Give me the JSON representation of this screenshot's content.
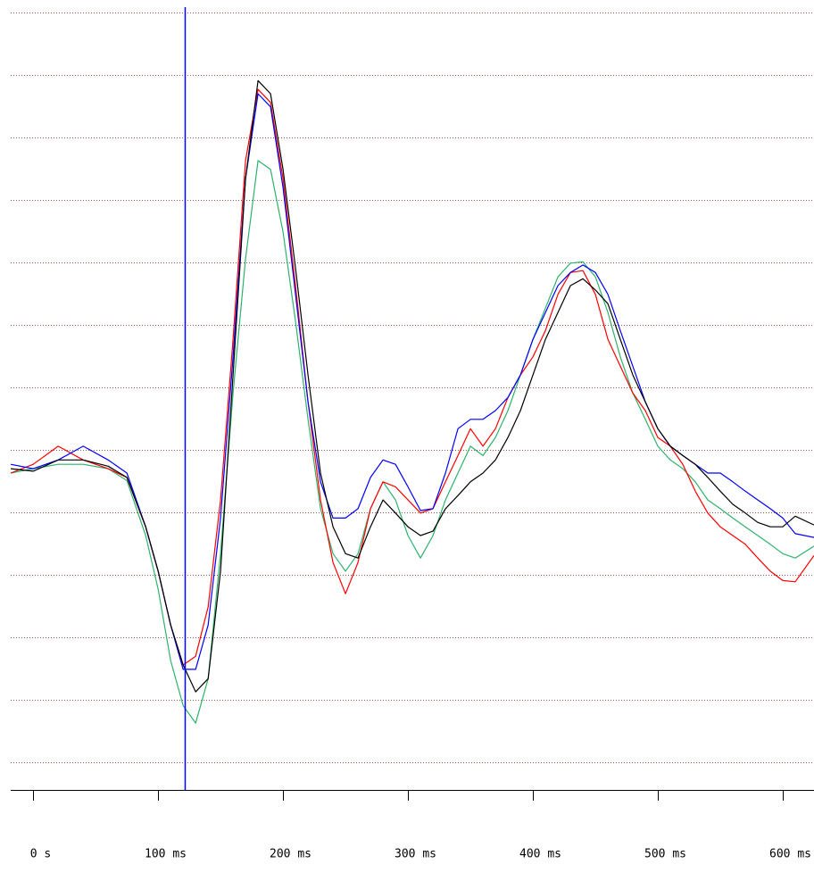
{
  "chart_data": {
    "type": "line",
    "x": [
      -18,
      0,
      20,
      40,
      60,
      75,
      90,
      100,
      110,
      120,
      130,
      140,
      150,
      160,
      170,
      180,
      190,
      200,
      210,
      220,
      230,
      240,
      250,
      260,
      270,
      280,
      290,
      300,
      310,
      320,
      330,
      340,
      350,
      360,
      370,
      380,
      390,
      400,
      410,
      420,
      430,
      440,
      450,
      460,
      470,
      480,
      490,
      500,
      510,
      520,
      530,
      540,
      550,
      560,
      570,
      580,
      590,
      600,
      610,
      625
    ],
    "series": [
      {
        "color": "#2db36b",
        "values": [
          -0.37,
          -0.3,
          -0.23,
          -0.23,
          -0.3,
          -0.49,
          -1.37,
          -2.23,
          -3.37,
          -4.09,
          -4.37,
          -3.66,
          -1.66,
          0.91,
          3.06,
          4.63,
          4.49,
          3.49,
          2.06,
          0.49,
          -0.94,
          -1.66,
          -1.94,
          -1.66,
          -0.94,
          -0.51,
          -0.8,
          -1.37,
          -1.73,
          -1.37,
          -0.8,
          -0.37,
          0.06,
          -0.09,
          0.2,
          0.63,
          1.2,
          1.77,
          2.27,
          2.77,
          2.99,
          3.01,
          2.77,
          2.2,
          1.49,
          0.91,
          0.49,
          0.06,
          -0.16,
          -0.3,
          -0.51,
          -0.8,
          -0.94,
          -1.09,
          -1.23,
          -1.37,
          -1.51,
          -1.66,
          -1.73,
          -1.54
        ]
      },
      {
        "color": "#ff0000",
        "values": [
          -0.37,
          -0.23,
          0.06,
          -0.16,
          -0.3,
          -0.44,
          -1.23,
          -1.94,
          -2.8,
          -3.44,
          -3.3,
          -2.51,
          -0.8,
          1.77,
          4.63,
          5.77,
          5.56,
          4.34,
          2.63,
          0.77,
          -0.8,
          -1.8,
          -2.3,
          -1.8,
          -0.94,
          -0.51,
          -0.59,
          -0.8,
          -1.01,
          -0.94,
          -0.51,
          -0.09,
          0.34,
          0.06,
          0.34,
          0.84,
          1.2,
          1.49,
          1.91,
          2.49,
          2.84,
          2.87,
          2.49,
          1.77,
          1.34,
          0.91,
          0.63,
          0.2,
          0.06,
          -0.23,
          -0.66,
          -1.01,
          -1.23,
          -1.37,
          -1.51,
          -1.73,
          -1.94,
          -2.09,
          -2.11,
          -1.69
        ]
      },
      {
        "color": "#0000ff",
        "values": [
          -0.23,
          -0.3,
          -0.16,
          0.06,
          -0.16,
          -0.37,
          -1.23,
          -1.94,
          -2.8,
          -3.51,
          -3.51,
          -2.8,
          -1.09,
          1.49,
          4.34,
          5.7,
          5.49,
          4.2,
          2.49,
          0.77,
          -0.51,
          -1.09,
          -1.09,
          -0.94,
          -0.44,
          -0.16,
          -0.23,
          -0.59,
          -0.97,
          -0.94,
          -0.37,
          0.34,
          0.49,
          0.49,
          0.63,
          0.84,
          1.2,
          1.77,
          2.2,
          2.63,
          2.84,
          2.96,
          2.84,
          2.49,
          1.91,
          1.34,
          0.77,
          0.34,
          0.06,
          -0.09,
          -0.23,
          -0.37,
          -0.37,
          -0.51,
          -0.66,
          -0.8,
          -0.94,
          -1.09,
          -1.34,
          -1.4
        ]
      },
      {
        "color": "#000000",
        "values": [
          -0.3,
          -0.34,
          -0.16,
          -0.16,
          -0.26,
          -0.44,
          -1.23,
          -1.94,
          -2.8,
          -3.44,
          -3.87,
          -3.66,
          -1.94,
          1.2,
          4.34,
          5.91,
          5.7,
          4.49,
          2.91,
          1.2,
          -0.37,
          -1.23,
          -1.66,
          -1.73,
          -1.23,
          -0.8,
          -1.01,
          -1.23,
          -1.37,
          -1.3,
          -0.94,
          -0.73,
          -0.51,
          -0.37,
          -0.16,
          0.2,
          0.63,
          1.2,
          1.77,
          2.2,
          2.63,
          2.74,
          2.56,
          2.34,
          1.77,
          1.2,
          0.77,
          0.34,
          0.06,
          -0.09,
          -0.23,
          -0.44,
          -0.66,
          -0.87,
          -1.01,
          -1.16,
          -1.23,
          -1.23,
          -1.06,
          -1.2
        ]
      }
    ],
    "xlim": [
      -18,
      625
    ],
    "xticks": [
      {
        "value": 0,
        "label": "0 s"
      },
      {
        "value": 100,
        "label": "100 ms"
      },
      {
        "value": 200,
        "label": "200 ms"
      },
      {
        "value": 300,
        "label": "300 ms"
      },
      {
        "value": 400,
        "label": "400 ms"
      },
      {
        "value": 500,
        "label": "500 ms"
      },
      {
        "value": 600,
        "label": "600 ms"
      }
    ],
    "ylim": [
      -5.44,
      7.2
    ],
    "yticks": [
      -5,
      -4,
      -3,
      -2,
      -1,
      0,
      1,
      2,
      3,
      4,
      5,
      6,
      7
    ],
    "grid": true,
    "grid_color": "#a0524f",
    "cursor_x": 121,
    "cursor_color": "#0000ff"
  }
}
